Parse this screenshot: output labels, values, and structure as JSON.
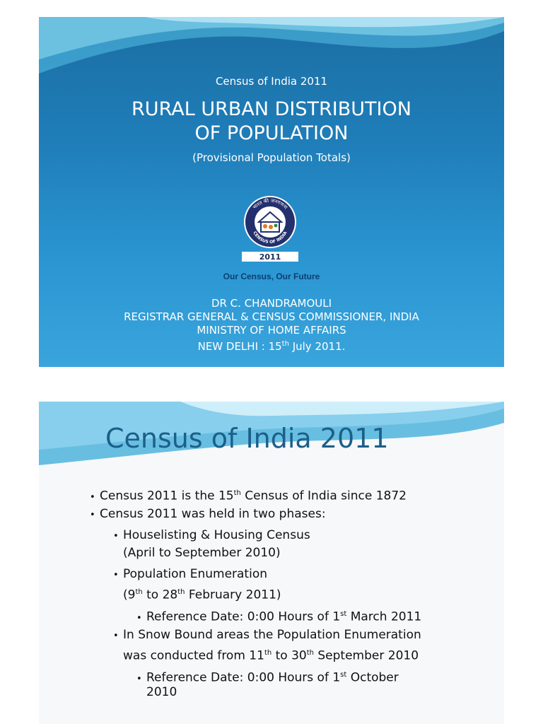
{
  "slide1": {
    "subtitle": "Census of India 2011",
    "title_line1": "RURAL URBAN DISTRIBUTION",
    "title_line2": "OF POPULATION",
    "parenthetical": "(Provisional Population Totals)",
    "logo": {
      "ring_text_top": "भारत की जनगणना",
      "ring_text_bottom": "CENSUS OF INDIA",
      "year": "2011"
    },
    "motto": "Our Census, Our Future",
    "author_name": "DR C. CHANDRAMOULI",
    "author_role": "REGISTRAR GENERAL & CENSUS COMMISSIONER, INDIA",
    "ministry": "MINISTRY OF HOME AFFAIRS",
    "date_prefix": "NEW DELHI : 15",
    "date_sup": "th",
    "date_suffix": " July 2011."
  },
  "slide2": {
    "title": "Census of India 2011",
    "bullets": [
      {
        "pre": "Census 2011 is the 15",
        "sup": "th",
        "post": " Census of India since 1872"
      },
      {
        "pre": "Census 2011 was held in two phases:"
      },
      {
        "pre": "Houselisting & Housing Census"
      },
      {
        "pre": "(April to September 2010)"
      },
      {
        "pre": "Population Enumeration"
      },
      {
        "pre": "(9",
        "sup": "th",
        "mid": " to 28",
        "sup2": "th",
        "post": " February 2011)"
      },
      {
        "pre": "Reference Date: 0:00 Hours of 1",
        "sup": "st",
        "post": " March 2011"
      },
      {
        "pre": "In Snow Bound areas the Population Enumeration"
      },
      {
        "pre": "was conducted from 11",
        "sup": "th",
        "mid": " to 30",
        "sup2": "th",
        "post": " September 2010"
      },
      {
        "pre": "Reference Date: 0:00 Hours of 1",
        "sup": "st",
        "post": " October"
      },
      {
        "pre": "2010"
      }
    ]
  }
}
